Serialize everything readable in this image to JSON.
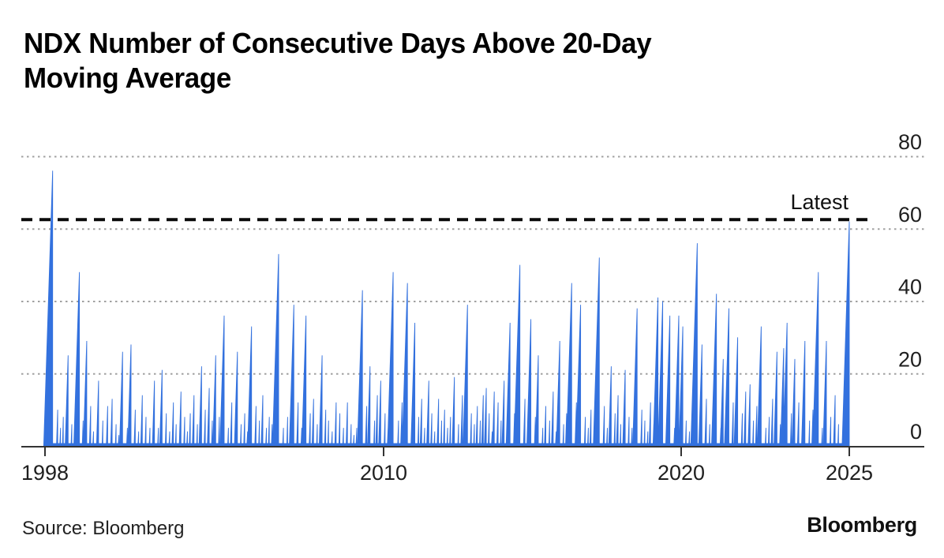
{
  "header": {
    "title_line1": "NDX Number of Consecutive Days Above 20-Day",
    "title_line2": "Moving Average"
  },
  "footer": {
    "source": "Source: Bloomberg",
    "logo": "Bloomberg"
  },
  "chart_data": {
    "type": "area",
    "title": "NDX Number of Consecutive Days Above 20-Day Moving Average",
    "series_name": "Consecutive days above 20-day moving average",
    "series_color": "#3371de",
    "xlabel": "",
    "ylabel": "",
    "xlim": [
      1997.8,
      2025.6
    ],
    "ylim": [
      0,
      80
    ],
    "x_ticks": [
      1998,
      2010,
      2020,
      2025
    ],
    "y_ticks": [
      0,
      20,
      40,
      60,
      80
    ],
    "grid": "dotted horizontal gridlines at 20/40/60/80, solid zero axis",
    "legend_position": "none",
    "annotation": {
      "label": "Latest",
      "value": 62.5,
      "line_style": "dashed-black"
    },
    "spike_format": "[decimal_year_of_run_end, consecutive_days_peak]",
    "baseline_note": "dense 1-5 day runs form a near-solid thin band along zero line",
    "spikes": [
      [
        1998.08,
        4
      ],
      [
        1998.27,
        76
      ],
      [
        1998.45,
        10
      ],
      [
        1998.55,
        5
      ],
      [
        1998.65,
        8
      ],
      [
        1998.82,
        25
      ],
      [
        1998.95,
        6
      ],
      [
        1999.05,
        5
      ],
      [
        1999.22,
        48
      ],
      [
        1999.35,
        7
      ],
      [
        1999.48,
        29
      ],
      [
        1999.62,
        11
      ],
      [
        1999.72,
        4
      ],
      [
        1999.9,
        18
      ],
      [
        2000.05,
        7
      ],
      [
        2000.22,
        11
      ],
      [
        2000.38,
        13
      ],
      [
        2000.52,
        6
      ],
      [
        2000.62,
        3
      ],
      [
        2000.75,
        26
      ],
      [
        2000.92,
        5
      ],
      [
        2001.05,
        28
      ],
      [
        2001.2,
        10
      ],
      [
        2001.32,
        4
      ],
      [
        2001.45,
        14
      ],
      [
        2001.58,
        8
      ],
      [
        2001.72,
        5
      ],
      [
        2001.88,
        18
      ],
      [
        2002.02,
        5
      ],
      [
        2002.15,
        21
      ],
      [
        2002.3,
        9
      ],
      [
        2002.42,
        4
      ],
      [
        2002.55,
        12
      ],
      [
        2002.65,
        6
      ],
      [
        2002.82,
        15
      ],
      [
        2002.95,
        8
      ],
      [
        2003.05,
        4
      ],
      [
        2003.15,
        9
      ],
      [
        2003.28,
        14
      ],
      [
        2003.4,
        6
      ],
      [
        2003.55,
        22
      ],
      [
        2003.68,
        10
      ],
      [
        2003.82,
        16
      ],
      [
        2003.93,
        7
      ],
      [
        2004.05,
        25
      ],
      [
        2004.18,
        8
      ],
      [
        2004.35,
        36
      ],
      [
        2004.5,
        5
      ],
      [
        2004.62,
        12
      ],
      [
        2004.82,
        26
      ],
      [
        2004.95,
        6
      ],
      [
        2005.08,
        9
      ],
      [
        2005.18,
        4
      ],
      [
        2005.32,
        33
      ],
      [
        2005.48,
        11
      ],
      [
        2005.6,
        7
      ],
      [
        2005.72,
        14
      ],
      [
        2005.85,
        5
      ],
      [
        2005.95,
        8
      ],
      [
        2006.05,
        6
      ],
      [
        2006.15,
        10
      ],
      [
        2006.28,
        53
      ],
      [
        2006.45,
        5
      ],
      [
        2006.6,
        8
      ],
      [
        2006.82,
        39
      ],
      [
        2006.97,
        12
      ],
      [
        2007.1,
        5
      ],
      [
        2007.25,
        36
      ],
      [
        2007.4,
        9
      ],
      [
        2007.52,
        13
      ],
      [
        2007.65,
        6
      ],
      [
        2007.82,
        25
      ],
      [
        2007.95,
        10
      ],
      [
        2008.05,
        7
      ],
      [
        2008.18,
        4
      ],
      [
        2008.32,
        12
      ],
      [
        2008.45,
        9
      ],
      [
        2008.58,
        5
      ],
      [
        2008.72,
        12
      ],
      [
        2008.85,
        6
      ],
      [
        2008.95,
        3
      ],
      [
        2009.05,
        5
      ],
      [
        2009.12,
        8
      ],
      [
        2009.25,
        43
      ],
      [
        2009.4,
        11
      ],
      [
        2009.52,
        22
      ],
      [
        2009.68,
        7
      ],
      [
        2009.78,
        14
      ],
      [
        2009.9,
        18
      ],
      [
        2010.05,
        9
      ],
      [
        2010.15,
        5
      ],
      [
        2010.32,
        48
      ],
      [
        2010.5,
        7
      ],
      [
        2010.62,
        12
      ],
      [
        2010.8,
        45
      ],
      [
        2010.95,
        6
      ],
      [
        2011.05,
        34
      ],
      [
        2011.18,
        8
      ],
      [
        2011.28,
        13
      ],
      [
        2011.38,
        5
      ],
      [
        2011.52,
        18
      ],
      [
        2011.62,
        9
      ],
      [
        2011.72,
        4
      ],
      [
        2011.85,
        13
      ],
      [
        2011.95,
        7
      ],
      [
        2012.05,
        10
      ],
      [
        2012.15,
        5
      ],
      [
        2012.25,
        8
      ],
      [
        2012.38,
        19
      ],
      [
        2012.52,
        6
      ],
      [
        2012.65,
        14
      ],
      [
        2012.82,
        39
      ],
      [
        2012.95,
        9
      ],
      [
        2013.05,
        6
      ],
      [
        2013.15,
        11
      ],
      [
        2013.25,
        7
      ],
      [
        2013.35,
        14
      ],
      [
        2013.45,
        16
      ],
      [
        2013.55,
        9
      ],
      [
        2013.65,
        4
      ],
      [
        2013.72,
        15
      ],
      [
        2013.85,
        12
      ],
      [
        2013.95,
        7
      ],
      [
        2014.05,
        18
      ],
      [
        2014.15,
        5
      ],
      [
        2014.25,
        34
      ],
      [
        2014.4,
        9
      ],
      [
        2014.58,
        50
      ],
      [
        2014.75,
        13
      ],
      [
        2014.85,
        6
      ],
      [
        2014.95,
        35
      ],
      [
        2015.1,
        8
      ],
      [
        2015.2,
        25
      ],
      [
        2015.35,
        5
      ],
      [
        2015.45,
        11
      ],
      [
        2015.58,
        7
      ],
      [
        2015.7,
        15
      ],
      [
        2015.8,
        4
      ],
      [
        2015.92,
        29
      ],
      [
        2016.05,
        6
      ],
      [
        2016.15,
        9
      ],
      [
        2016.32,
        45
      ],
      [
        2016.48,
        12
      ],
      [
        2016.62,
        39
      ],
      [
        2016.78,
        8
      ],
      [
        2016.88,
        5
      ],
      [
        2016.97,
        10
      ],
      [
        2017.08,
        7
      ],
      [
        2017.25,
        52
      ],
      [
        2017.42,
        11
      ],
      [
        2017.52,
        5
      ],
      [
        2017.65,
        22
      ],
      [
        2017.78,
        9
      ],
      [
        2017.88,
        14
      ],
      [
        2017.97,
        6
      ],
      [
        2018.12,
        21
      ],
      [
        2018.25,
        8
      ],
      [
        2018.35,
        5
      ],
      [
        2018.52,
        38
      ],
      [
        2018.68,
        10
      ],
      [
        2018.78,
        7
      ],
      [
        2018.88,
        4
      ],
      [
        2018.97,
        12
      ],
      [
        2019.08,
        6
      ],
      [
        2019.22,
        41
      ],
      [
        2019.38,
        40
      ],
      [
        2019.52,
        9
      ],
      [
        2019.62,
        36
      ],
      [
        2019.78,
        5
      ],
      [
        2019.92,
        36
      ],
      [
        2020.05,
        33
      ],
      [
        2020.15,
        7
      ],
      [
        2020.25,
        4
      ],
      [
        2020.35,
        10
      ],
      [
        2020.48,
        56
      ],
      [
        2020.62,
        28
      ],
      [
        2020.75,
        13
      ],
      [
        2020.85,
        6
      ],
      [
        2020.95,
        9
      ],
      [
        2021.05,
        42
      ],
      [
        2021.18,
        5
      ],
      [
        2021.25,
        24
      ],
      [
        2021.42,
        38
      ],
      [
        2021.55,
        12
      ],
      [
        2021.68,
        30
      ],
      [
        2021.82,
        9
      ],
      [
        2021.92,
        15
      ],
      [
        2022.05,
        17
      ],
      [
        2022.15,
        7
      ],
      [
        2022.25,
        11
      ],
      [
        2022.38,
        33
      ],
      [
        2022.52,
        5
      ],
      [
        2022.62,
        8
      ],
      [
        2022.72,
        13
      ],
      [
        2022.85,
        26
      ],
      [
        2022.95,
        6
      ],
      [
        2023.05,
        27
      ],
      [
        2023.15,
        34
      ],
      [
        2023.28,
        9
      ],
      [
        2023.38,
        24
      ],
      [
        2023.5,
        12
      ],
      [
        2023.68,
        29
      ],
      [
        2023.82,
        7
      ],
      [
        2023.92,
        10
      ],
      [
        2024.08,
        48
      ],
      [
        2024.2,
        5
      ],
      [
        2024.32,
        29
      ],
      [
        2024.45,
        8
      ],
      [
        2024.58,
        14
      ],
      [
        2024.68,
        6
      ],
      [
        2024.82,
        9
      ],
      [
        2024.9,
        4
      ],
      [
        2025.0,
        62
      ]
    ]
  },
  "axes": {
    "y_labels": [
      "80",
      "60",
      "40",
      "20",
      "0"
    ],
    "x_labels": [
      "1998",
      "2010",
      "2020",
      "2025"
    ]
  }
}
